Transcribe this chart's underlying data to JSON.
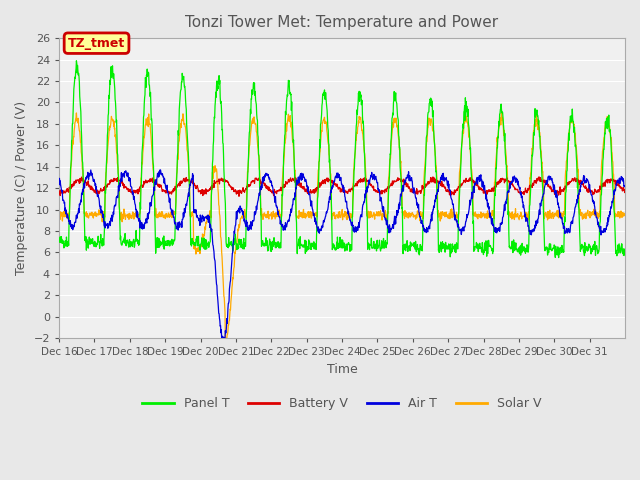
{
  "title": "Tonzi Tower Met: Temperature and Power",
  "xlabel": "Time",
  "ylabel": "Temperature (C) / Power (V)",
  "ylim": [
    -2,
    26
  ],
  "yticks": [
    -2,
    0,
    2,
    4,
    6,
    8,
    10,
    12,
    14,
    16,
    18,
    20,
    22,
    24,
    26
  ],
  "xtick_labels": [
    "Dec 16",
    "Dec 17",
    "Dec 18",
    "Dec 19",
    "Dec 20",
    "Dec 21",
    "Dec 22",
    "Dec 23",
    "Dec 24",
    "Dec 25",
    "Dec 26",
    "Dec 27",
    "Dec 28",
    "Dec 29",
    "Dec 30",
    "Dec 31"
  ],
  "legend_labels": [
    "Panel T",
    "Battery V",
    "Air T",
    "Solar V"
  ],
  "legend_colors": [
    "#00ee00",
    "#dd0000",
    "#0000dd",
    "#ffaa00"
  ],
  "annotation_text": "TZ_tmet",
  "annotation_color": "#cc0000",
  "annotation_bg": "#ffff99",
  "panel_t_color": "#00ee00",
  "battery_v_color": "#dd0000",
  "air_t_color": "#0000dd",
  "solar_v_color": "#ffaa00",
  "background_color": "#e8e8e8",
  "plot_bg_color": "#f0f0f0",
  "grid_color": "#ffffff",
  "title_color": "#555555",
  "axis_label_color": "#555555",
  "tick_label_color": "#555555"
}
